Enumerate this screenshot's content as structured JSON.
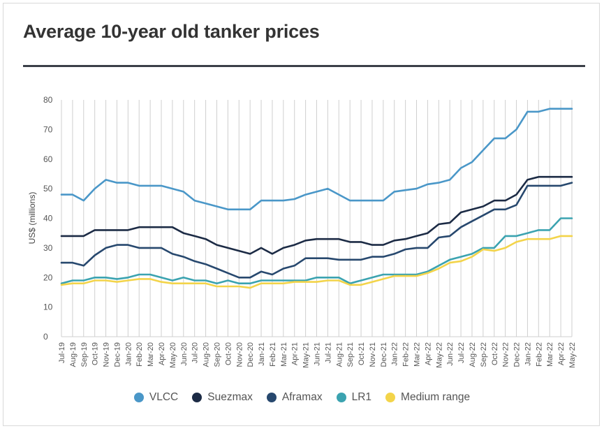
{
  "chart_data": {
    "type": "line",
    "title": "Average 10-year old tanker prices",
    "xlabel": "",
    "ylabel": "US$ (millions)",
    "ylim": [
      0,
      80
    ],
    "yticks": [
      0,
      10,
      20,
      30,
      40,
      50,
      60,
      70,
      80
    ],
    "grid": "vertical",
    "categories": [
      "Jul-19",
      "Aug-19",
      "Sep-19",
      "Oct-19",
      "Nov-19",
      "Dec-19",
      "Jan-20",
      "Feb-20",
      "Mar-20",
      "Apr-20",
      "May-20",
      "Jun-20",
      "Jul-20",
      "Aug-20",
      "Sep-20",
      "Oct-20",
      "Nov-20",
      "Dec-20",
      "Jan-21",
      "Feb-21",
      "Mar-21",
      "Apr-21",
      "May-21",
      "Jun-21",
      "Jul-21",
      "Aug-21",
      "Sep-21",
      "Oct-21",
      "Nov-21",
      "Dec-21",
      "Jan-22",
      "Feb-22",
      "Mar-22",
      "Apr-22",
      "May-22",
      "Jun-22",
      "Jul-22",
      "Aug-22",
      "Sep-22",
      "Oct-22",
      "Nov-22",
      "Dec-22",
      "Jan-22",
      "Feb-22",
      "Mar-22",
      "Apr-22",
      "May-22"
    ],
    "series": [
      {
        "name": "VLCC",
        "color": "#4a97c8",
        "values": [
          48,
          48,
          46,
          50,
          53,
          52,
          52,
          51,
          51,
          51,
          50,
          49,
          46,
          45,
          44,
          43,
          43,
          43,
          46,
          46,
          46,
          46.5,
          48,
          49,
          50,
          48,
          46,
          46,
          46,
          46,
          49,
          49.5,
          50,
          51.5,
          52,
          53,
          57,
          59,
          63,
          67,
          67,
          70,
          76,
          76,
          77,
          77,
          77
        ]
      },
      {
        "name": "Suezmax",
        "color": "#1c2b45",
        "values": [
          34,
          34,
          34,
          36,
          36,
          36,
          36,
          37,
          37,
          37,
          37,
          35,
          34,
          33,
          31,
          30,
          29,
          28,
          30,
          28,
          30,
          31,
          32.5,
          33,
          33,
          33,
          32,
          32,
          31,
          31,
          32.5,
          33,
          34,
          35,
          38,
          38.5,
          42,
          43,
          44,
          46,
          46,
          48,
          53,
          54,
          54,
          54,
          54
        ]
      },
      {
        "name": "Aframax",
        "color": "#27486e",
        "values": [
          25,
          25,
          24,
          27.5,
          30,
          31,
          31,
          30,
          30,
          30,
          28,
          27,
          25.5,
          24.5,
          23,
          21.5,
          20,
          20,
          22,
          21,
          23,
          24,
          26.5,
          26.5,
          26.5,
          26,
          26,
          26,
          27,
          27,
          28,
          29.5,
          30,
          30,
          33.5,
          34,
          37,
          39,
          41,
          43,
          43,
          44.5,
          51,
          51,
          51,
          51,
          52
        ]
      },
      {
        "name": "LR1",
        "color": "#3ba3b0",
        "values": [
          18,
          19,
          19,
          20,
          20,
          19.5,
          20,
          21,
          21,
          20,
          19,
          20,
          19,
          19,
          18,
          19,
          18,
          18,
          19,
          19,
          19,
          19,
          19,
          20,
          20,
          20,
          18,
          19,
          20,
          21,
          21,
          21,
          21,
          22,
          24,
          26,
          27,
          28,
          30,
          30,
          34,
          34,
          35,
          36,
          36,
          40,
          40
        ]
      },
      {
        "name": "Medium range",
        "color": "#f3d44a",
        "values": [
          17.5,
          18,
          18,
          19,
          19,
          18.5,
          19,
          19.5,
          19.5,
          18.5,
          18,
          18,
          18,
          18,
          17,
          17,
          17,
          16.5,
          18,
          18,
          18,
          18.5,
          18.5,
          18.5,
          19,
          19,
          17.5,
          17.5,
          18.5,
          19.5,
          20.5,
          20.5,
          20.5,
          21.5,
          23,
          25,
          25.5,
          27,
          29.5,
          29,
          30,
          32,
          33,
          33,
          33,
          34,
          34
        ]
      }
    ]
  },
  "legend": {
    "items": [
      {
        "label": "VLCC",
        "color": "#4a97c8"
      },
      {
        "label": "Suezmax",
        "color": "#1c2b45"
      },
      {
        "label": "Aframax",
        "color": "#27486e"
      },
      {
        "label": "LR1",
        "color": "#3ba3b0"
      },
      {
        "label": "Medium range",
        "color": "#f3d44a"
      }
    ]
  }
}
